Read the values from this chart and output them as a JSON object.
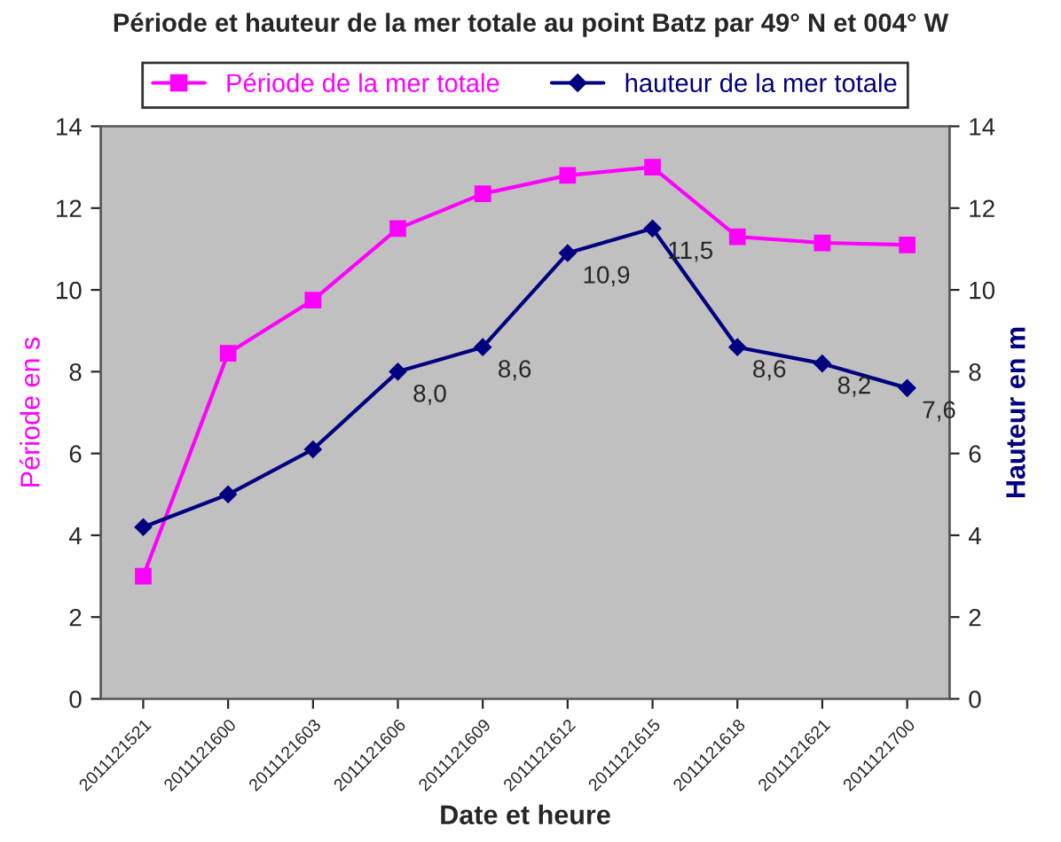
{
  "chart_data": {
    "type": "line",
    "title": "Période et hauteur de la mer totale au point Batz par 49° N et 004° W",
    "xlabel": "Date et heure",
    "ylabel": "Période en s",
    "y2label": "Hauteur en m",
    "categories": [
      "2011121521",
      "2011121600",
      "2011121603",
      "2011121606",
      "2011121609",
      "2011121612",
      "2011121615",
      "2011121618",
      "2011121621",
      "2011121700"
    ],
    "series": [
      {
        "name": "Période de la mer totale",
        "color": "#ff00ff",
        "marker": "square",
        "values": [
          3.0,
          8.45,
          9.75,
          11.5,
          12.35,
          12.8,
          13.0,
          11.3,
          11.15,
          11.1
        ]
      },
      {
        "name": "hauteur de la mer totale",
        "color": "#000080",
        "marker": "diamond",
        "axis": "y2",
        "values": [
          4.2,
          5.0,
          6.1,
          8.0,
          8.6,
          10.9,
          11.5,
          8.6,
          8.2,
          7.6
        ],
        "value_labels": [
          null,
          null,
          null,
          "8,0",
          "8,6",
          "10,9",
          "11,5",
          "8,6",
          "8,2",
          "7,6"
        ]
      }
    ],
    "ylim": [
      0,
      14
    ],
    "yticks": [
      0,
      2,
      4,
      6,
      8,
      10,
      12,
      14
    ],
    "y2lim": [
      0,
      14
    ],
    "y2ticks": [
      0,
      2,
      4,
      6,
      8,
      10,
      12,
      14
    ],
    "grid": false,
    "legend": "top",
    "line_style": "solid"
  }
}
